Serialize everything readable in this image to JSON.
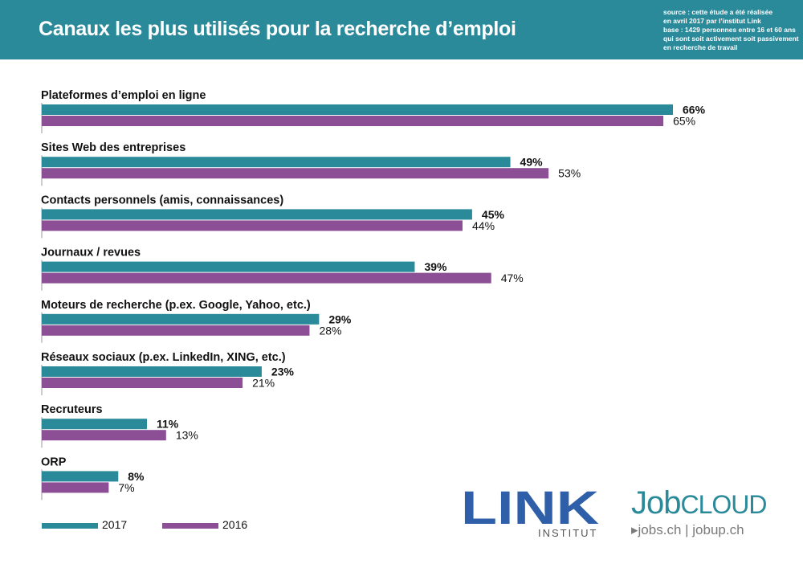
{
  "header": {
    "title": "Canaux les plus utilisés pour la recherche d’emploi",
    "source_lines": [
      "source : cette étude a été réalisée",
      "en avril 2017 par l’institut Link",
      "base : 1429  personnes entre 16 et 60 ans",
      "qui sont soit activement soit passivement",
      "en recherche de travail"
    ]
  },
  "chart_data": {
    "type": "bar",
    "orientation": "horizontal",
    "categories": [
      "Plateformes d’emploi en ligne",
      "Sites Web des entreprises",
      "Contacts personnels (amis, connaissances)",
      "Journaux / revues",
      "Moteurs de recherche (p.ex. Google, Yahoo, etc.)",
      "Réseaux sociaux (p.ex. LinkedIn, XING, etc.)",
      "Recruteurs",
      "ORP"
    ],
    "series": [
      {
        "name": "2017",
        "color": "#2a8a9a",
        "values": [
          66,
          49,
          45,
          39,
          29,
          23,
          11,
          8
        ],
        "labels": [
          "66%",
          "49%",
          "45%",
          "39%",
          "29%",
          "23%",
          "11%",
          "8%"
        ]
      },
      {
        "name": "2016",
        "color": "#8c4f96",
        "values": [
          65,
          53,
          44,
          47,
          28,
          21,
          13,
          7
        ],
        "labels": [
          "65%",
          "53%",
          "44%",
          "47%",
          "28%",
          "21%",
          "13%",
          "7%"
        ]
      }
    ],
    "xlim": [
      0,
      66
    ],
    "legend_position": "bottom-left"
  },
  "logos": {
    "link_main": "LINK",
    "link_sub": "INSTITUT",
    "jobcloud_job": "Job",
    "jobcloud_cloud": "CLOUD",
    "jobcloud_sub": "▸jobs.ch  |  jobup.ch"
  }
}
